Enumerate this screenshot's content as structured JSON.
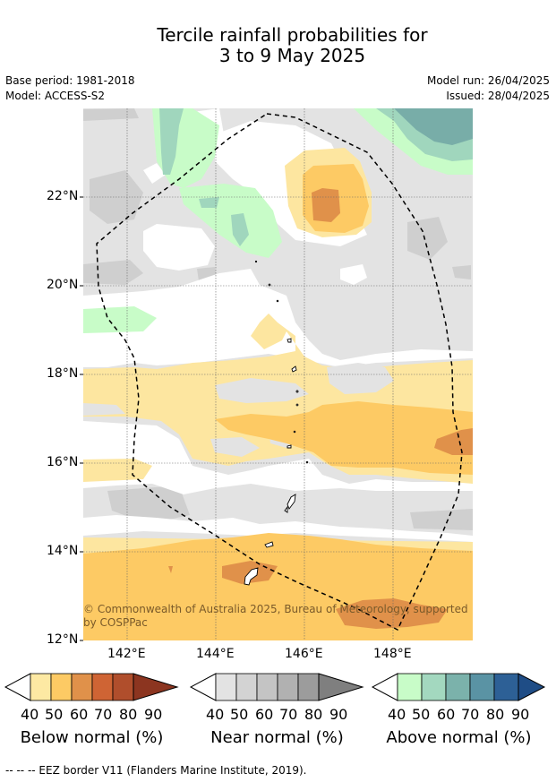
{
  "header": {
    "title_line1": "Tercile rainfall probabilities for",
    "title_line2": "3 to 9 May 2025",
    "base_period": "Base period: 1981-2018",
    "model": "Model: ACCESS-S2",
    "model_run": "Model run: 26/04/2025",
    "issued": "Issued: 28/04/2025"
  },
  "map": {
    "lat_labels": [
      "22°N",
      "20°N",
      "18°N",
      "16°N",
      "14°N",
      "12°N"
    ],
    "lon_labels": [
      "142°E",
      "144°E",
      "146°E",
      "148°E"
    ],
    "credit_line1": "© Commonwealth of Australia 2025, Bureau of Meteorology, supported",
    "credit_line2": "by COSPPac",
    "colors": {
      "near_normal": "#e3e3e3",
      "near_darker": "#cfcfcf",
      "below_40": "#fde6a0",
      "below_50": "#fdca64",
      "below_60": "#e0914a",
      "above_40": "#c8fcc8",
      "above_50": "#a0d6bd",
      "above_60": "#78ada8"
    }
  },
  "colorbars": [
    {
      "title": "Below normal (%)",
      "ticks": [
        "40",
        "50",
        "60",
        "70",
        "80",
        "90"
      ],
      "colors": [
        "#fde9a3",
        "#fdca64",
        "#e0914a",
        "#cf6434",
        "#b04e2c",
        "#8c3520"
      ]
    },
    {
      "title": "Near normal (%)",
      "ticks": [
        "40",
        "50",
        "60",
        "70",
        "80",
        "90"
      ],
      "colors": [
        "#e3e3e3",
        "#d3d3d3",
        "#c4c4c4",
        "#b1b1b1",
        "#9c9c9c",
        "#7f7f7f"
      ]
    },
    {
      "title": "Above normal (%)",
      "ticks": [
        "40",
        "50",
        "60",
        "70",
        "80",
        "90"
      ],
      "colors": [
        "#c8fcc8",
        "#a3d8bf",
        "#7bb2ab",
        "#5a93a4",
        "#2d6096",
        "#1f4d86"
      ]
    }
  ],
  "footer": {
    "legend_text": "--  --  -- EEZ border V11 (Flanders Marine Institute, 2019)."
  }
}
